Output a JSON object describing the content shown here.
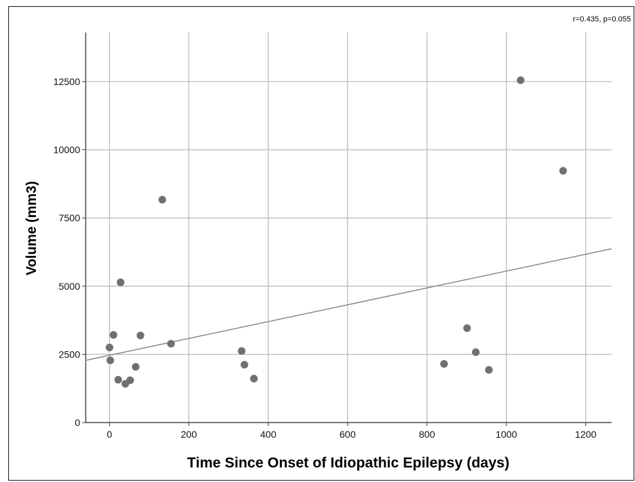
{
  "annotation": "r=0.435, p=0.055",
  "colors": {
    "points": "#707070",
    "grid": "#bdbdbd",
    "fit_line": "#8a8a8a",
    "axis": "#333333"
  },
  "chart_data": {
    "type": "scatter",
    "xlabel": "Time Since Onset of Idiopathic Epilepsy (days)",
    "ylabel": "Volume (mm3)",
    "xlim": [
      -60,
      1265
    ],
    "ylim": [
      0,
      14300
    ],
    "xticks": [
      0,
      200,
      400,
      600,
      800,
      1000,
      1200
    ],
    "yticks": [
      0,
      2500,
      5000,
      7500,
      10000,
      12500
    ],
    "grid": true,
    "points": [
      {
        "x": 0,
        "y": 2750
      },
      {
        "x": 2,
        "y": 2280
      },
      {
        "x": 10,
        "y": 3210
      },
      {
        "x": 22,
        "y": 1570
      },
      {
        "x": 28,
        "y": 5140
      },
      {
        "x": 40,
        "y": 1420
      },
      {
        "x": 52,
        "y": 1550
      },
      {
        "x": 66,
        "y": 2040
      },
      {
        "x": 78,
        "y": 3190
      },
      {
        "x": 133,
        "y": 8170
      },
      {
        "x": 155,
        "y": 2890
      },
      {
        "x": 333,
        "y": 2620
      },
      {
        "x": 340,
        "y": 2120
      },
      {
        "x": 364,
        "y": 1610
      },
      {
        "x": 843,
        "y": 2150
      },
      {
        "x": 901,
        "y": 3460
      },
      {
        "x": 923,
        "y": 2580
      },
      {
        "x": 956,
        "y": 1930
      },
      {
        "x": 1036,
        "y": 12550
      },
      {
        "x": 1143,
        "y": 9230
      }
    ],
    "fit_line": {
      "x": [
        -60,
        1265
      ],
      "y": [
        2280,
        6370
      ]
    }
  }
}
